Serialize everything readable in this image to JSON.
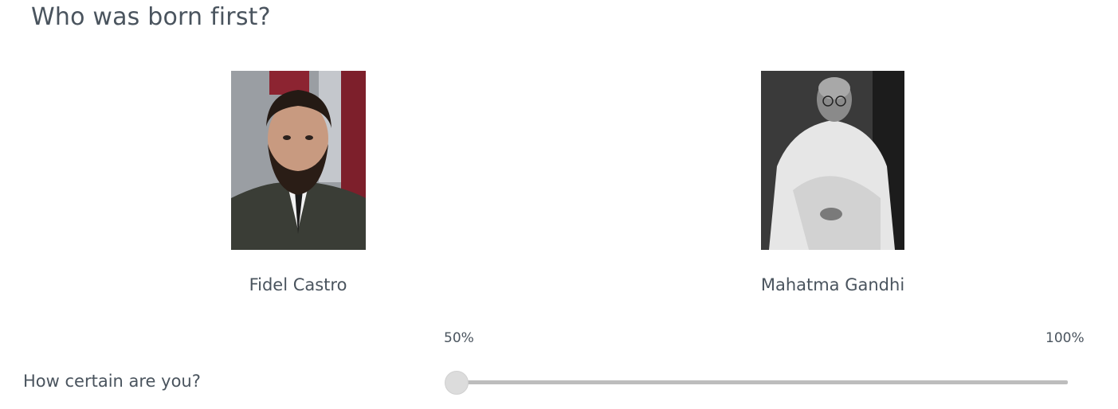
{
  "question": {
    "title": "Who was born first?"
  },
  "options": [
    {
      "name": "Fidel Castro",
      "image_icon": "fidel-castro-portrait"
    },
    {
      "name": "Mahatma Gandhi",
      "image_icon": "mahatma-gandhi-portrait"
    }
  ],
  "certainty": {
    "label": "How certain are you?",
    "min_label": "50%",
    "max_label": "100%",
    "value_fraction": 0
  },
  "colors": {
    "text": "#4a545e",
    "track": "#bdbdbd",
    "thumb": "#dcdcdc"
  }
}
